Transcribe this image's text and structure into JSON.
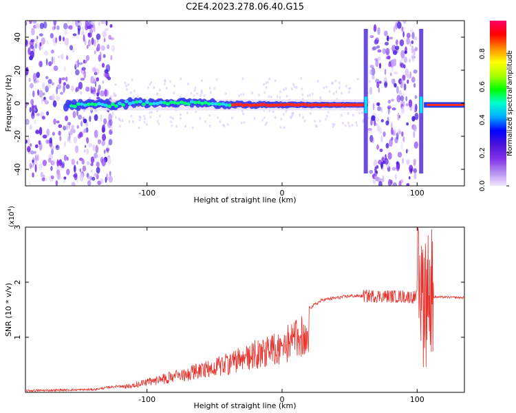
{
  "title": "C2E4.2023.278.06.40.G15",
  "chart_data": [
    {
      "type": "heatmap",
      "xlabel": "Height of straight line (km)",
      "ylabel": "Frequency (Hz)",
      "xlim": [
        -190,
        135
      ],
      "ylim": [
        -50,
        50
      ],
      "xticks": [
        -100,
        0,
        100
      ],
      "yticks": [
        -40,
        -20,
        0,
        20,
        40
      ],
      "colorbar": {
        "label": "Normalized spectral amplitude",
        "range": [
          0,
          1
        ],
        "ticks": [
          "0.0",
          "0.2",
          "0.4",
          "0.6",
          "0.8"
        ],
        "colors": [
          "#f2e6ff",
          "#b28cf0",
          "#7f2fe8",
          "#4b14d8",
          "#0000ff",
          "#00aaff",
          "#00ffd0",
          "#00ff00",
          "#aaff00",
          "#ffff00",
          "#ff8800",
          "#ff0000",
          "#ff0066"
        ]
      },
      "features": {
        "main_band_centre_hz": -1,
        "noise_regions_km": [
          [
            -190,
            -125
          ],
          [
            65,
            100
          ]
        ],
        "spike_positions_km": [
          62,
          103
        ]
      }
    },
    {
      "type": "line",
      "xlabel": "Height of straight line (km)",
      "ylabel": "SNR (10 * v/v)",
      "y_multiplier": "(x10",
      "y_multiplier_exp": "4",
      "xlim": [
        -190,
        135
      ],
      "ylim": [
        0,
        3
      ],
      "xticks": [
        -100,
        0,
        100
      ],
      "yticks": [
        1,
        2,
        3
      ],
      "line_color": "#e8302a",
      "envelope": [
        {
          "x": -190,
          "y": 0.03
        },
        {
          "x": -140,
          "y": 0.05
        },
        {
          "x": -120,
          "y": 0.12
        },
        {
          "x": -100,
          "y": 0.25
        },
        {
          "x": -80,
          "y": 0.4
        },
        {
          "x": -60,
          "y": 0.55
        },
        {
          "x": -40,
          "y": 0.72
        },
        {
          "x": -20,
          "y": 0.95
        },
        {
          "x": 0,
          "y": 1.15
        },
        {
          "x": 15,
          "y": 1.45
        },
        {
          "x": 30,
          "y": 1.68
        },
        {
          "x": 50,
          "y": 1.75
        },
        {
          "x": 70,
          "y": 1.75
        },
        {
          "x": 90,
          "y": 1.74
        },
        {
          "x": 100,
          "y": 1.73
        },
        {
          "x": 115,
          "y": 1.73
        },
        {
          "x": 135,
          "y": 1.72
        }
      ],
      "burst_km": [
        100,
        112
      ],
      "burst_peak": 3.0
    }
  ]
}
